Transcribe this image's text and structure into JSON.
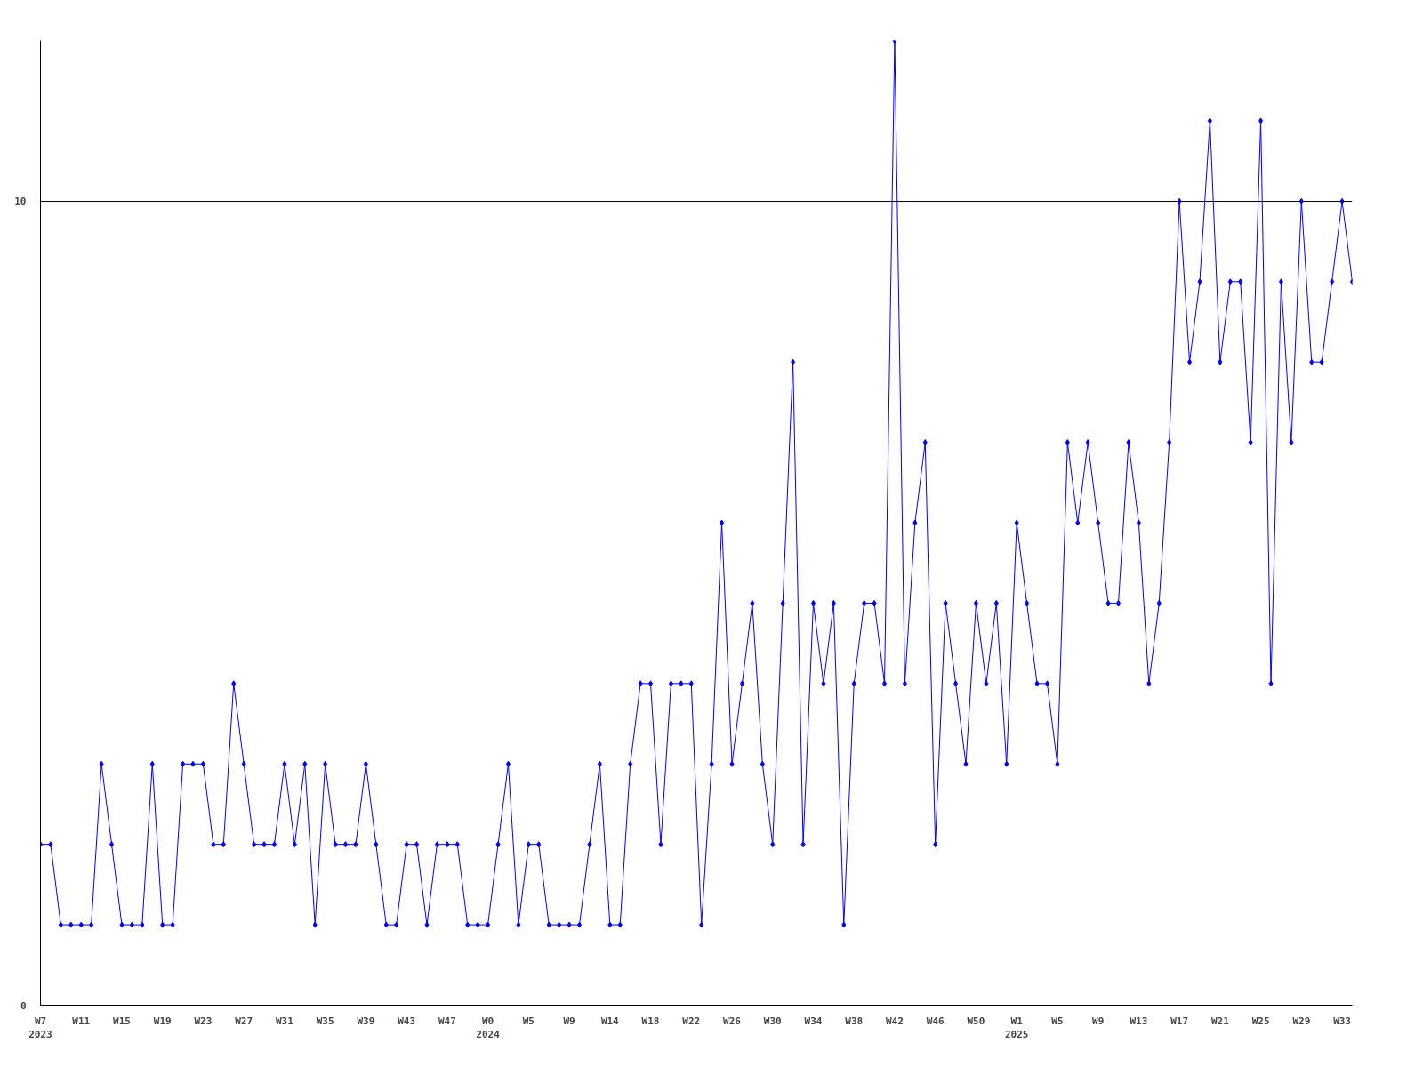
{
  "chart_data": {
    "type": "line",
    "categories": [
      "W7\n2023",
      null,
      null,
      null,
      "W11",
      null,
      null,
      null,
      "W15",
      null,
      null,
      null,
      "W19",
      null,
      null,
      null,
      "W23",
      null,
      null,
      null,
      "W27",
      null,
      null,
      null,
      "W31",
      null,
      null,
      null,
      "W35",
      null,
      null,
      null,
      "W39",
      null,
      null,
      null,
      "W43",
      null,
      null,
      null,
      "W47",
      null,
      null,
      null,
      "W0\n2024",
      null,
      null,
      null,
      "W5",
      null,
      null,
      null,
      "W9",
      null,
      null,
      null,
      "W14",
      null,
      null,
      null,
      "W18",
      null,
      null,
      null,
      "W22",
      null,
      null,
      null,
      "W26",
      null,
      null,
      null,
      "W30",
      null,
      null,
      null,
      "W34",
      null,
      null,
      null,
      "W38",
      null,
      null,
      null,
      "W42",
      null,
      null,
      null,
      "W46",
      null,
      null,
      null,
      "W50",
      null,
      null,
      null,
      "W1\n2025",
      null,
      null,
      null,
      "W5",
      null,
      null,
      null,
      "W9",
      null,
      null,
      null,
      "W13",
      null,
      null,
      null,
      "W17",
      null,
      null,
      null,
      "W21",
      null,
      null,
      null,
      "W25",
      null,
      null,
      null,
      "W29",
      null,
      null,
      null,
      "W33",
      null
    ],
    "series": [
      {
        "color": "#0000ff",
        "values": [
          2,
          2,
          1,
          1,
          1,
          1,
          3,
          2,
          1,
          1,
          1,
          3,
          1,
          1,
          3,
          3,
          3,
          2,
          2,
          4,
          3,
          2,
          2,
          2,
          3,
          2,
          3,
          1,
          3,
          2,
          2,
          2,
          3,
          2,
          1,
          1,
          2,
          2,
          1,
          2,
          2,
          2,
          1,
          1,
          1,
          2,
          3,
          1,
          2,
          2,
          1,
          1,
          1,
          1,
          2,
          3,
          1,
          1,
          3,
          4,
          4,
          2,
          4,
          4,
          4,
          1,
          3,
          6,
          3,
          4,
          5,
          3,
          2,
          5,
          8,
          2,
          5,
          4,
          5,
          1,
          4,
          5,
          5,
          4,
          12,
          4,
          6,
          7,
          2,
          5,
          4,
          3,
          5,
          4,
          5,
          3,
          6,
          5,
          4,
          4,
          3,
          7,
          6,
          7,
          6,
          5,
          5,
          7,
          6,
          4,
          5,
          7,
          10,
          8,
          9,
          11,
          8,
          9,
          9,
          7,
          11,
          4,
          9,
          7,
          10,
          8,
          8,
          9,
          10,
          9
        ]
      }
    ],
    "ylim": [
      0,
      12
    ],
    "yticks": [
      0,
      10
    ],
    "grid": "y",
    "marker": "diamond",
    "line_style": "solid"
  }
}
